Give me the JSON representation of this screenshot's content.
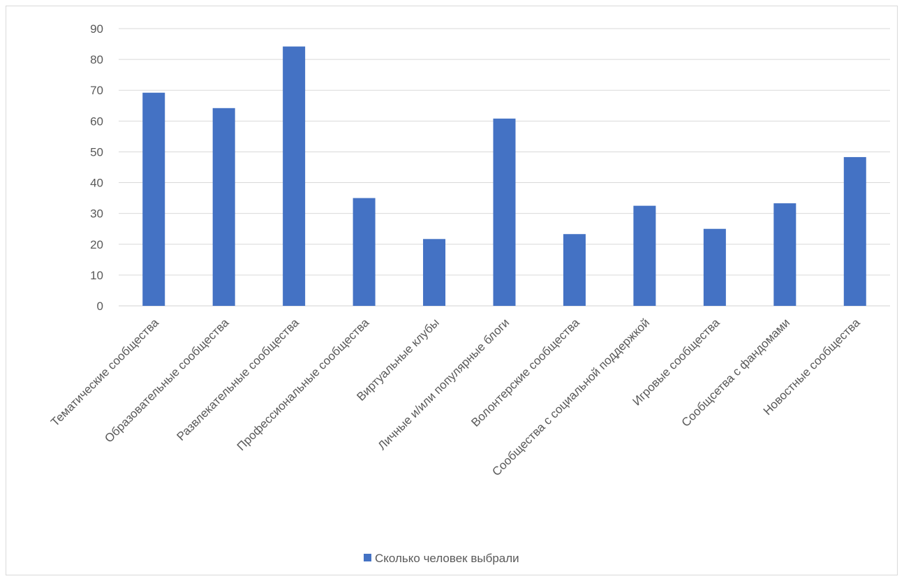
{
  "chart_data": {
    "type": "bar",
    "categories": [
      "Тематические сообщества",
      "Образовательные сообщества",
      "Развлекательные сообщества",
      "Профессиональные сообщества",
      "Виртуальные клубы",
      "Личные и/или популярные блоги",
      "Волонтерские сообщества",
      "Сообщества с социальной поддержкой",
      "Игровые сообщества",
      "Сообщсетва с фандомами",
      "Новостные сообщества"
    ],
    "series": [
      {
        "name": "Сколько человек выбрали",
        "values": [
          69.2,
          64.2,
          84.2,
          35.0,
          21.7,
          60.8,
          23.3,
          32.5,
          25.0,
          33.3,
          48.3
        ],
        "color": "#4472c4"
      }
    ],
    "yticks": [
      "0",
      "10",
      "20",
      "30",
      "40",
      "50",
      "60",
      "70",
      "80",
      "90"
    ],
    "ylim": [
      0,
      90
    ],
    "grid": true,
    "legend_position": "bottom",
    "title": "",
    "xlabel": "",
    "ylabel": ""
  }
}
